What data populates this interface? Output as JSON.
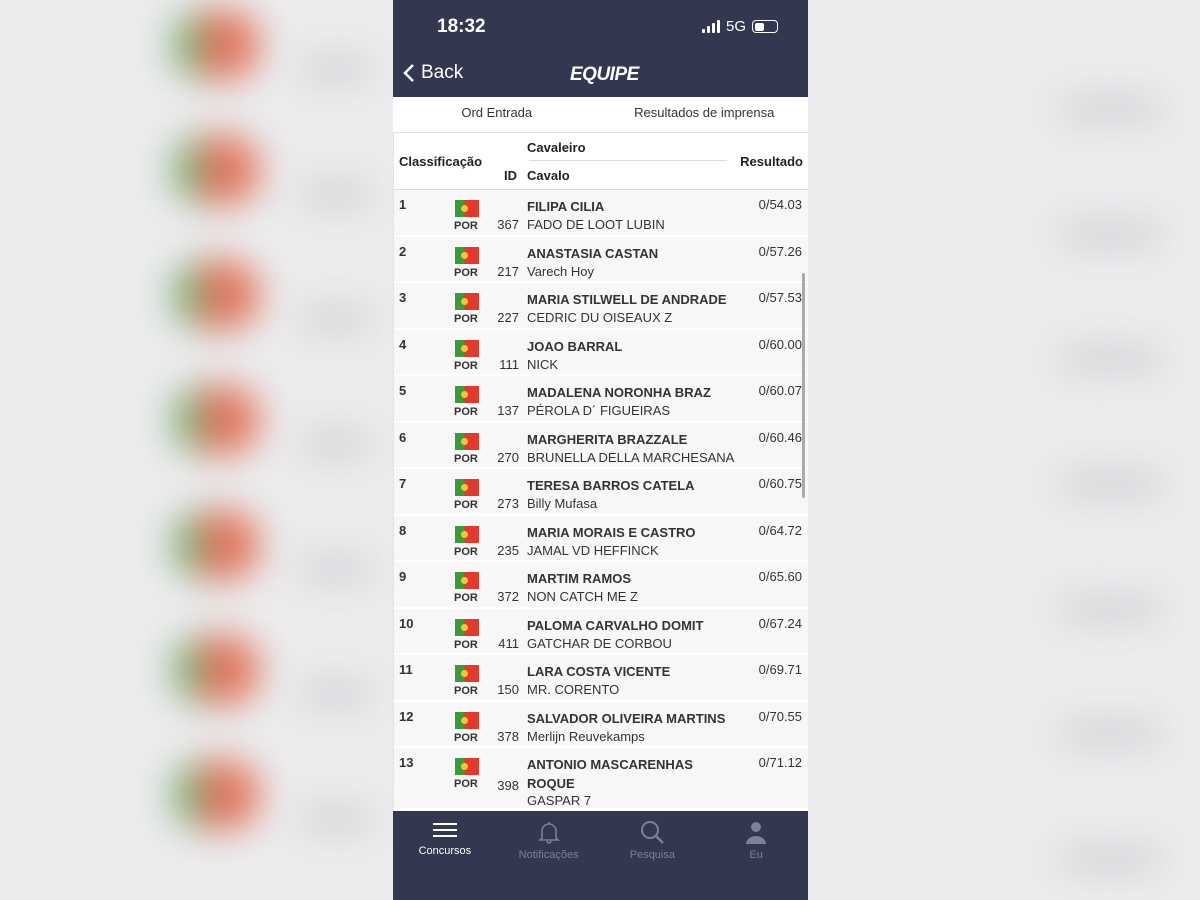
{
  "status": {
    "time": "18:32",
    "network": "5G"
  },
  "header": {
    "back_label": "Back",
    "logo_text": "EQUIPE"
  },
  "tabs": [
    "Ord Entrada",
    "Resultados de imprensa"
  ],
  "table": {
    "headers": {
      "rank": "Classificação",
      "id": "ID",
      "rider": "Cavaleiro",
      "horse": "Cavalo",
      "result": "Resultado"
    },
    "rows": [
      {
        "rank": "1",
        "nation": "POR",
        "id": "367",
        "rider": "FILIPA CILIA",
        "horse": "FADO DE LOOT LUBIN",
        "result": "0/54.03"
      },
      {
        "rank": "2",
        "nation": "POR",
        "id": "217",
        "rider": "ANASTASIA CASTAN",
        "horse": "Varech Hoy",
        "result": "0/57.26"
      },
      {
        "rank": "3",
        "nation": "POR",
        "id": "227",
        "rider": "MARIA STILWELL DE ANDRADE",
        "horse": "CEDRIC DU OISEAUX Z",
        "result": "0/57.53"
      },
      {
        "rank": "4",
        "nation": "POR",
        "id": "111",
        "rider": "JOAO BARRAL",
        "horse": "NICK",
        "result": "0/60.00"
      },
      {
        "rank": "5",
        "nation": "POR",
        "id": "137",
        "rider": "MADALENA NORONHA BRAZ",
        "horse": "PÉROLA D´ FIGUEIRAS",
        "result": "0/60.07"
      },
      {
        "rank": "6",
        "nation": "POR",
        "id": "270",
        "rider": "MARGHERITA BRAZZALE",
        "horse": "BRUNELLA DELLA MARCHESANA",
        "result": "0/60.46"
      },
      {
        "rank": "7",
        "nation": "POR",
        "id": "273",
        "rider": "TERESA BARROS CATELA",
        "horse": "Billy Mufasa",
        "result": "0/60.75"
      },
      {
        "rank": "8",
        "nation": "POR",
        "id": "235",
        "rider": "MARIA MORAIS E CASTRO",
        "horse": "JAMAL VD HEFFINCK",
        "result": "0/64.72"
      },
      {
        "rank": "9",
        "nation": "POR",
        "id": "372",
        "rider": "MARTIM RAMOS",
        "horse": "NON CATCH ME Z",
        "result": "0/65.60"
      },
      {
        "rank": "10",
        "nation": "POR",
        "id": "411",
        "rider": "PALOMA CARVALHO DOMIT",
        "horse": "GATCHAR DE CORBOU",
        "result": "0/67.24"
      },
      {
        "rank": "11",
        "nation": "POR",
        "id": "150",
        "rider": "LARA COSTA VICENTE",
        "horse": "MR. CORENTO",
        "result": "0/69.71"
      },
      {
        "rank": "12",
        "nation": "POR",
        "id": "378",
        "rider": "SALVADOR OLIVEIRA MARTINS",
        "horse": "Merlijn Reuvekamps",
        "result": "0/70.55"
      },
      {
        "rank": "13",
        "nation": "POR",
        "id": "398",
        "rider": "ANTONIO MASCARENHAS ROQUE",
        "horse": "GASPAR 7",
        "result": "0/71.12"
      }
    ]
  },
  "nav": [
    {
      "label": "Concursos",
      "icon": "menu-icon",
      "active": true
    },
    {
      "label": "Notificações",
      "icon": "bell-icon"
    },
    {
      "label": "Pesquisa",
      "icon": "search-icon"
    },
    {
      "label": "Eu",
      "icon": "user-icon"
    }
  ],
  "colors": {
    "header": "#33374f",
    "row": "#f7f7f8"
  }
}
